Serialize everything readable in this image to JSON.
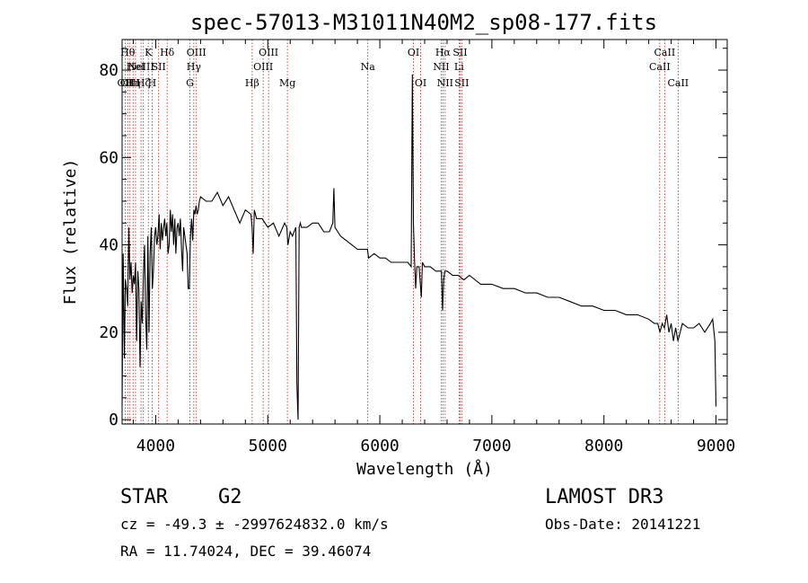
{
  "chart_data": {
    "type": "line",
    "title": "spec-57013-M31011N40M2_sp08-177.fits",
    "xlabel": "Wavelength (Å)",
    "ylabel": "Flux (relative)",
    "xlim": [
      3700,
      9100
    ],
    "ylim": [
      -1,
      87
    ],
    "xticks": [
      4000,
      5000,
      6000,
      7000,
      8000,
      9000
    ],
    "yticks": [
      0,
      20,
      40,
      60,
      80
    ],
    "series": [
      {
        "name": "flux",
        "x": [
          3700,
          3710,
          3720,
          3730,
          3740,
          3750,
          3760,
          3770,
          3780,
          3790,
          3800,
          3810,
          3820,
          3830,
          3840,
          3850,
          3860,
          3870,
          3880,
          3890,
          3900,
          3910,
          3920,
          3930,
          3940,
          3950,
          3960,
          3970,
          3980,
          3990,
          4000,
          4010,
          4020,
          4030,
          4040,
          4050,
          4060,
          4070,
          4080,
          4090,
          4100,
          4110,
          4120,
          4130,
          4140,
          4150,
          4160,
          4170,
          4180,
          4190,
          4200,
          4210,
          4220,
          4230,
          4240,
          4250,
          4260,
          4270,
          4280,
          4290,
          4300,
          4310,
          4320,
          4330,
          4340,
          4350,
          4360,
          4370,
          4380,
          4390,
          4400,
          4450,
          4500,
          4550,
          4600,
          4650,
          4700,
          4750,
          4800,
          4850,
          4860,
          4870,
          4880,
          4900,
          4950,
          5000,
          5050,
          5100,
          5150,
          5170,
          5180,
          5200,
          5220,
          5250,
          5260,
          5270,
          5280,
          5290,
          5300,
          5350,
          5400,
          5450,
          5500,
          5550,
          5580,
          5590,
          5600,
          5650,
          5700,
          5750,
          5800,
          5850,
          5890,
          5900,
          5950,
          6000,
          6050,
          6100,
          6150,
          6200,
          6250,
          6280,
          6290,
          6300,
          6310,
          6320,
          6330,
          6350,
          6370,
          6380,
          6400,
          6450,
          6500,
          6550,
          6560,
          6570,
          6580,
          6600,
          6650,
          6700,
          6750,
          6800,
          6850,
          6900,
          6950,
          7000,
          7100,
          7200,
          7300,
          7400,
          7500,
          7600,
          7700,
          7800,
          7900,
          8000,
          8100,
          8200,
          8300,
          8400,
          8450,
          8480,
          8500,
          8520,
          8540,
          8560,
          8580,
          8600,
          8620,
          8640,
          8660,
          8680,
          8700,
          8750,
          8800,
          8850,
          8900,
          8950,
          8970,
          8990,
          9000
        ],
        "values": [
          3,
          38,
          14,
          32,
          30,
          26,
          44,
          32,
          36,
          29,
          33,
          31,
          36,
          18,
          34,
          30,
          12,
          27,
          22,
          33,
          40,
          24,
          16,
          42,
          20,
          38,
          44,
          30,
          34,
          42,
          44,
          40,
          42,
          47,
          39,
          45,
          41,
          44,
          46,
          42,
          45,
          38,
          40,
          48,
          43,
          47,
          40,
          46,
          38,
          44,
          45,
          42,
          46,
          39,
          34,
          44,
          42,
          40,
          38,
          30,
          30,
          42,
          46,
          41,
          48,
          47,
          49,
          47,
          48,
          50,
          51,
          50,
          50,
          52,
          49,
          51,
          48,
          45,
          48,
          47,
          44,
          38,
          48,
          46,
          46,
          44,
          45,
          42,
          45,
          44,
          40,
          43,
          42,
          44,
          8,
          0,
          44,
          45,
          44,
          44,
          45,
          45,
          43,
          43,
          45,
          53,
          44,
          42,
          41,
          40,
          39,
          39,
          39,
          37,
          38,
          37,
          37,
          36,
          36,
          36,
          36,
          35,
          79,
          45,
          36,
          30,
          35,
          35,
          28,
          36,
          35,
          35,
          34,
          34,
          25,
          32,
          34,
          34,
          33,
          33,
          32,
          33,
          32,
          31,
          31,
          31,
          30,
          30,
          29,
          29,
          28,
          28,
          27,
          26,
          26,
          25,
          25,
          24,
          24,
          23,
          22,
          22,
          20,
          22,
          21,
          24,
          20,
          22,
          18,
          21,
          18,
          20,
          22,
          21,
          21,
          22,
          20,
          22,
          23,
          18,
          3
        ]
      }
    ],
    "spectral_lines": [
      {
        "wl": 3727,
        "label": "OII",
        "row": 3
      },
      {
        "wl": 3750,
        "label": "Hθ",
        "row": 1
      },
      {
        "wl": 3770,
        "label": "OIII",
        "row": 3
      },
      {
        "wl": 3798,
        "label": "Hη",
        "row": 3
      },
      {
        "wl": 3820,
        "label": "HeI",
        "row": 2
      },
      {
        "wl": 3869,
        "label": "NeIII",
        "row": 2
      },
      {
        "wl": 3890,
        "label": "Hζ",
        "row": 3
      },
      {
        "wl": 3934,
        "label": "K",
        "row": 1
      },
      {
        "wl": 3968,
        "label": "H",
        "row": 3
      },
      {
        "wl": 4026,
        "label": "SII",
        "row": 2
      },
      {
        "wl": 4102,
        "label": "Hδ",
        "row": 1
      },
      {
        "wl": 4305,
        "label": "G",
        "row": 3
      },
      {
        "wl": 4340,
        "label": "Hγ",
        "row": 2
      },
      {
        "wl": 4363,
        "label": "OIII",
        "row": 1
      },
      {
        "wl": 4861,
        "label": "Hβ",
        "row": 3
      },
      {
        "wl": 4959,
        "label": "OIII",
        "row": 2
      },
      {
        "wl": 5007,
        "label": "OIII",
        "row": 1
      },
      {
        "wl": 5175,
        "label": "Mg",
        "row": 3
      },
      {
        "wl": 5893,
        "label": "Na",
        "row": 2
      },
      {
        "wl": 6300,
        "label": "OI",
        "row": 1
      },
      {
        "wl": 6364,
        "label": "OI",
        "row": 3
      },
      {
        "wl": 6548,
        "label": "NII",
        "row": 2
      },
      {
        "wl": 6563,
        "label": "Hα",
        "row": 1
      },
      {
        "wl": 6583,
        "label": "NII",
        "row": 3
      },
      {
        "wl": 6707,
        "label": "Li",
        "row": 2
      },
      {
        "wl": 6716,
        "label": "SII",
        "row": 1
      },
      {
        "wl": 6731,
        "label": "SII",
        "row": 3
      },
      {
        "wl": 8498,
        "label": "CaII",
        "row": 2
      },
      {
        "wl": 8542,
        "label": "CaII",
        "row": 1
      },
      {
        "wl": 8662,
        "label": "CaII",
        "row": 3
      }
    ]
  },
  "info": {
    "class": "STAR",
    "subclass": "G2",
    "survey": "LAMOST DR3",
    "cz": "cz = -49.3 ± -2997624832.0 km/s",
    "obs_date": "Obs-Date: 20141221",
    "radec": "RA =  11.74024, DEC =  39.46074"
  }
}
